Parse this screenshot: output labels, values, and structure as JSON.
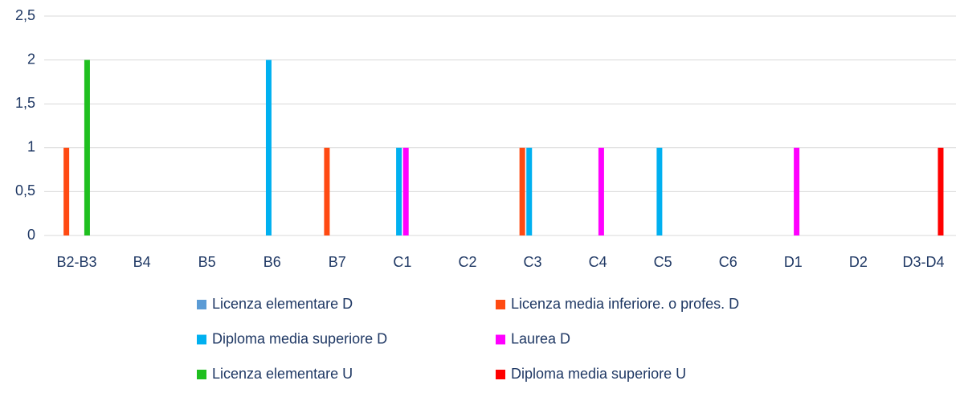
{
  "chart_data": {
    "type": "bar",
    "categories": [
      "B2-B3",
      "B4",
      "B5",
      "B6",
      "B7",
      "C1",
      "C2",
      "C3",
      "C4",
      "C5",
      "C6",
      "D1",
      "D2",
      "D3-D4"
    ],
    "series": [
      {
        "name": "Licenza elementare D",
        "color": "#5b9bd5",
        "values": [
          0,
          0,
          0,
          0,
          0,
          0,
          0,
          0,
          0,
          0,
          0,
          0,
          0,
          0
        ]
      },
      {
        "name": "Licenza media inferiore. o profes. D",
        "color": "#ff4a12",
        "values": [
          1,
          0,
          0,
          0,
          1,
          0,
          0,
          1,
          0,
          0,
          0,
          0,
          0,
          0
        ]
      },
      {
        "name": "Diploma media superiore D",
        "color": "#00b0f0",
        "values": [
          0,
          0,
          0,
          2,
          0,
          1,
          0,
          1,
          0,
          1,
          0,
          0,
          0,
          0
        ]
      },
      {
        "name": "Laurea D",
        "color": "#ff00ff",
        "values": [
          0,
          0,
          0,
          0,
          0,
          1,
          0,
          0,
          1,
          0,
          0,
          1,
          0,
          0
        ]
      },
      {
        "name": "Licenza elementare U",
        "color": "#1fbf1f",
        "values": [
          2,
          0,
          0,
          0,
          0,
          0,
          0,
          0,
          0,
          0,
          0,
          0,
          0,
          0
        ]
      },
      {
        "name": "Diploma media superiore U",
        "color": "#ff0000",
        "values": [
          0,
          0,
          0,
          0,
          0,
          0,
          0,
          0,
          0,
          0,
          0,
          0,
          0,
          1
        ]
      }
    ],
    "ylim": [
      0,
      2.5
    ],
    "yticks": [
      0,
      {
        "value": 0.5,
        "label": "0,5"
      },
      1,
      {
        "value": 1.5,
        "label": "1,5"
      },
      2,
      {
        "value": 2.5,
        "label": "2,5"
      }
    ],
    "grid": true,
    "legend": "bottom"
  }
}
